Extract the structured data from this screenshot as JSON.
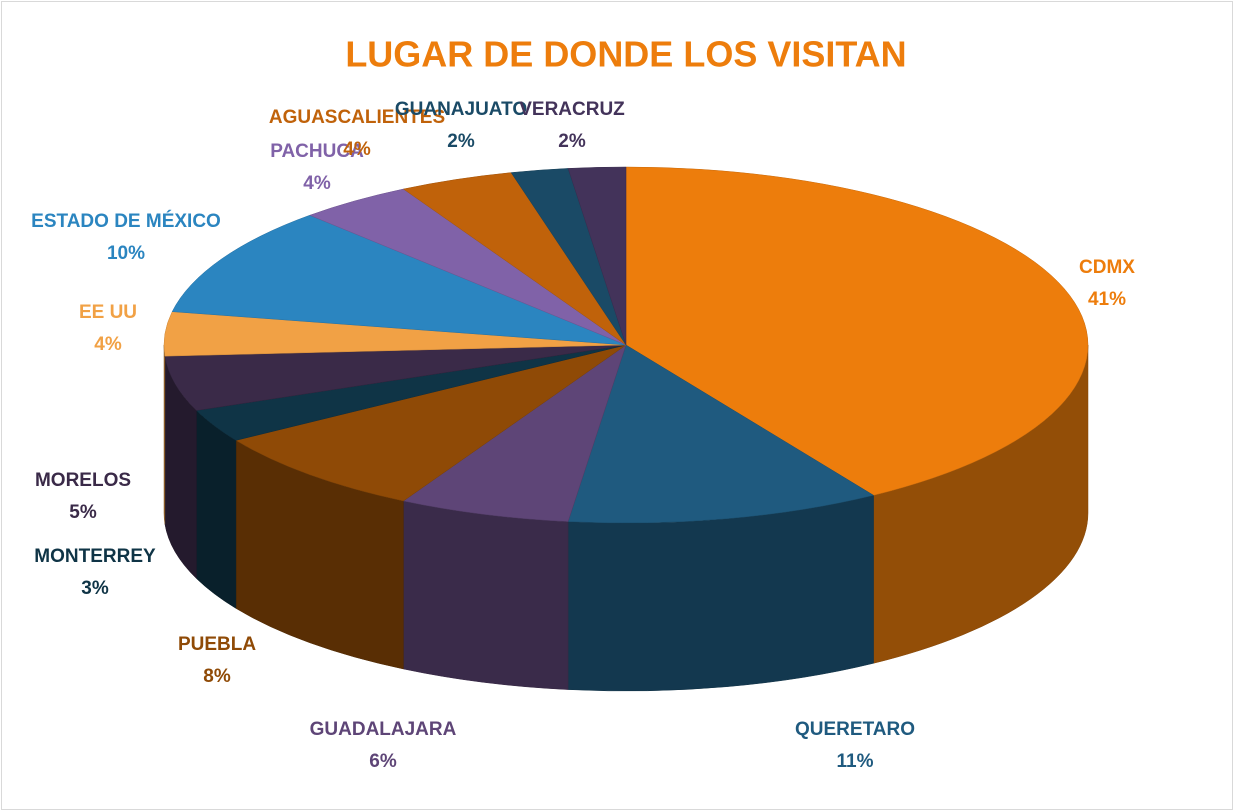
{
  "chart_data": {
    "type": "pie",
    "title": "LUGAR DE DONDE LOS VISITAN",
    "title_color": "#ed7d0c",
    "categories": [
      "CDMX",
      "QUERETARO",
      "GUADALAJARA",
      "PUEBLA",
      "MONTERREY",
      "MORELOS",
      "EE UU",
      "ESTADO DE MÉXICO",
      "PACHUCA",
      "AGUASCALIENTES",
      "GUANAJUATO",
      "VERACRUZ"
    ],
    "values": [
      41,
      11,
      6,
      8,
      3,
      5,
      4,
      10,
      4,
      4,
      2,
      2
    ],
    "value_labels": [
      "41%",
      "11%",
      "6%",
      "8%",
      "3%",
      "5%",
      "4%",
      "10%",
      "4%",
      "4%",
      "2%",
      "2%"
    ],
    "colors": [
      "#ed7d0c",
      "#1f5a7f",
      "#5e4577",
      "#8f4a06",
      "#0f3446",
      "#3a2a48",
      "#f1a145",
      "#2b85c0",
      "#8062a8",
      "#c0620a",
      "#1a4a66",
      "#43335a"
    ],
    "label_colors": [
      "#ed7d0c",
      "#1f5a7f",
      "#5e4577",
      "#8f4a06",
      "#0f3446",
      "#3a2a48",
      "#f1a145",
      "#2b85c0",
      "#8062a8",
      "#c0620a",
      "#1a4a66",
      "#43335a"
    ]
  }
}
